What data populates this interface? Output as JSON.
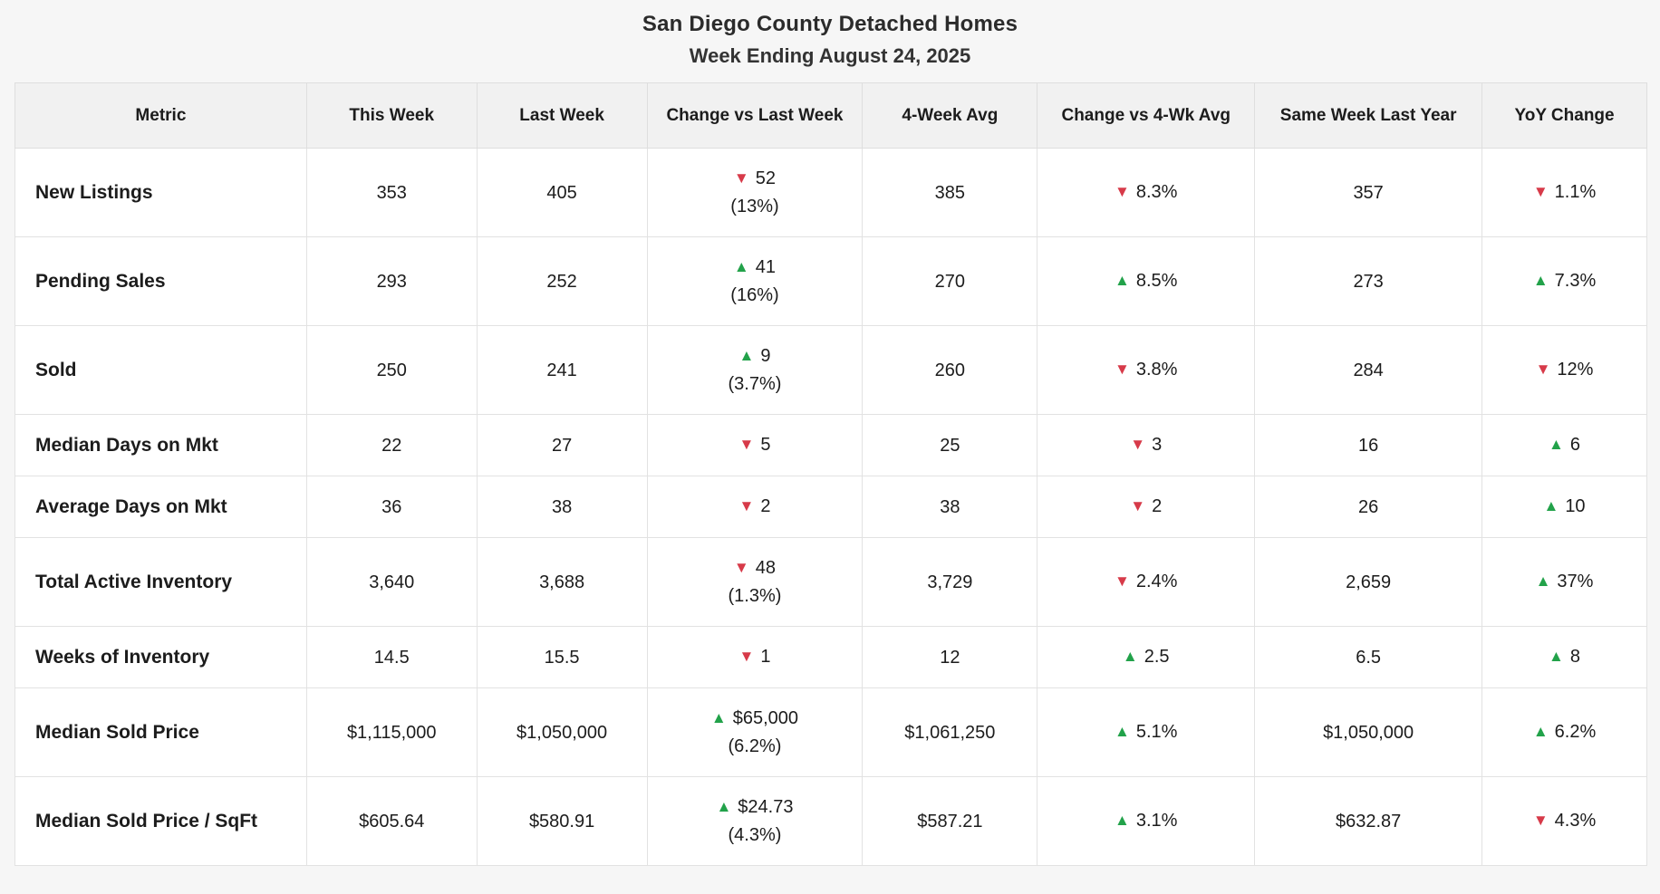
{
  "title": "San Diego County Detached Homes",
  "subtitle": "Week Ending August 24, 2025",
  "colors": {
    "up_green": "#22a24a",
    "down_red": "#d73a49",
    "header_bg": "#f1f1f1",
    "border": "#e2e2e2",
    "text": "#1c1c1c"
  },
  "icons": {
    "up": "▲",
    "down": "▼"
  },
  "table": {
    "columns": [
      "Metric",
      "This Week",
      "Last Week",
      "Change vs Last Week",
      "4-Week Avg",
      "Change vs 4-Wk Avg",
      "Same Week Last Year",
      "YoY Change"
    ],
    "rows": [
      {
        "metric": "New Listings",
        "this_week": "353",
        "last_week": "405",
        "change_vs_last_week": {
          "dir": "down",
          "value": "52",
          "sub": "(13%)"
        },
        "four_week_avg": "385",
        "change_vs_4wk_avg": {
          "dir": "down",
          "value": "8.3%"
        },
        "same_week_last_year": "357",
        "yoy_change": {
          "dir": "down",
          "value": "1.1%"
        }
      },
      {
        "metric": "Pending Sales",
        "this_week": "293",
        "last_week": "252",
        "change_vs_last_week": {
          "dir": "up",
          "value": "41",
          "sub": "(16%)"
        },
        "four_week_avg": "270",
        "change_vs_4wk_avg": {
          "dir": "up",
          "value": "8.5%"
        },
        "same_week_last_year": "273",
        "yoy_change": {
          "dir": "up",
          "value": "7.3%"
        }
      },
      {
        "metric": "Sold",
        "this_week": "250",
        "last_week": "241",
        "change_vs_last_week": {
          "dir": "up",
          "value": "9",
          "sub": "(3.7%)"
        },
        "four_week_avg": "260",
        "change_vs_4wk_avg": {
          "dir": "down",
          "value": "3.8%"
        },
        "same_week_last_year": "284",
        "yoy_change": {
          "dir": "down",
          "value": "12%"
        }
      },
      {
        "metric": "Median Days on Mkt",
        "this_week": "22",
        "last_week": "27",
        "change_vs_last_week": {
          "dir": "down",
          "value": "5",
          "sub": ""
        },
        "four_week_avg": "25",
        "change_vs_4wk_avg": {
          "dir": "down",
          "value": "3"
        },
        "same_week_last_year": "16",
        "yoy_change": {
          "dir": "up",
          "value": "6"
        }
      },
      {
        "metric": "Average Days on Mkt",
        "this_week": "36",
        "last_week": "38",
        "change_vs_last_week": {
          "dir": "down",
          "value": "2",
          "sub": ""
        },
        "four_week_avg": "38",
        "change_vs_4wk_avg": {
          "dir": "down",
          "value": "2"
        },
        "same_week_last_year": "26",
        "yoy_change": {
          "dir": "up",
          "value": "10"
        }
      },
      {
        "metric": "Total Active Inventory",
        "this_week": "3,640",
        "last_week": "3,688",
        "change_vs_last_week": {
          "dir": "down",
          "value": "48",
          "sub": "(1.3%)"
        },
        "four_week_avg": "3,729",
        "change_vs_4wk_avg": {
          "dir": "down",
          "value": "2.4%"
        },
        "same_week_last_year": "2,659",
        "yoy_change": {
          "dir": "up",
          "value": "37%"
        }
      },
      {
        "metric": "Weeks of Inventory",
        "this_week": "14.5",
        "last_week": "15.5",
        "change_vs_last_week": {
          "dir": "down",
          "value": "1",
          "sub": ""
        },
        "four_week_avg": "12",
        "change_vs_4wk_avg": {
          "dir": "up",
          "value": "2.5"
        },
        "same_week_last_year": "6.5",
        "yoy_change": {
          "dir": "up",
          "value": "8"
        }
      },
      {
        "metric": "Median Sold Price",
        "this_week": "$1,115,000",
        "last_week": "$1,050,000",
        "change_vs_last_week": {
          "dir": "up",
          "value": "$65,000",
          "sub": "(6.2%)"
        },
        "four_week_avg": "$1,061,250",
        "change_vs_4wk_avg": {
          "dir": "up",
          "value": "5.1%"
        },
        "same_week_last_year": "$1,050,000",
        "yoy_change": {
          "dir": "up",
          "value": "6.2%"
        }
      },
      {
        "metric": "Median Sold Price / SqFt",
        "this_week": "$605.64",
        "last_week": "$580.91",
        "change_vs_last_week": {
          "dir": "up",
          "value": "$24.73",
          "sub": "(4.3%)"
        },
        "four_week_avg": "$587.21",
        "change_vs_4wk_avg": {
          "dir": "up",
          "value": "3.1%"
        },
        "same_week_last_year": "$632.87",
        "yoy_change": {
          "dir": "down",
          "value": "4.3%"
        }
      }
    ]
  }
}
